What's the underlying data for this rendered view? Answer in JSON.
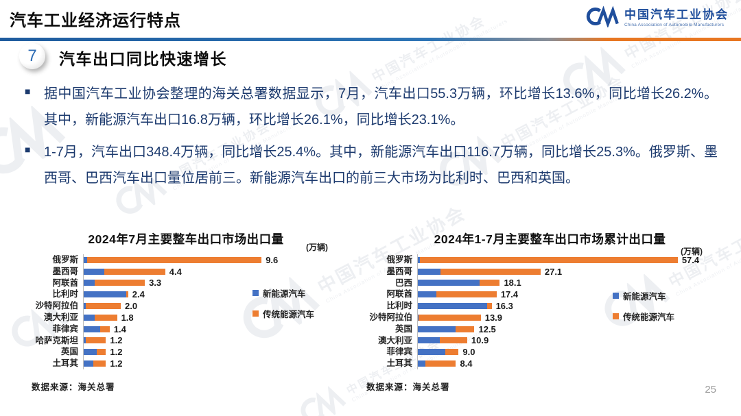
{
  "slide": {
    "title": "汽车工业经济运行特点",
    "section_number": "7",
    "section_title": "汽车出口同比快速增长",
    "page_number": "25"
  },
  "logo": {
    "name_cn": "中国汽车工业协会",
    "name_en": "China Association of Automobile Manufacturers"
  },
  "watermark": {
    "text_cn": "中国汽车工业协会",
    "text_en": "China Association of Automobile Manufacturers"
  },
  "icons": {
    "bullet_square": "■"
  },
  "colors": {
    "nev_blue": "#4472C4",
    "traditional_orange": "#ED7D31",
    "divider_blue": "#2E75B6",
    "divider_orange": "#E87722",
    "body_text": "#1C3A6E",
    "brand_blue": "#1F4E9C"
  },
  "bullets": [
    "据中国汽车工业协会整理的海关总署数据显示，7月，汽车出口55.3万辆，环比增长13.6%，同比增长26.2%。其中，新能源汽车出口16.8万辆，环比增长26.1%，同比增长23.1%。",
    "1-7月，汽车出口348.4万辆，同比增长25.4%。其中，新能源汽车出口116.7万辆，同比增长25.3%。俄罗斯、墨西哥、巴西汽车出口量位居前三。新能源汽车出口的前三大市场为比利时、巴西和英国。"
  ],
  "chart_data": [
    {
      "type": "bar",
      "orientation": "horizontal",
      "stacked": true,
      "title": "2024年7月主要整车出口市场出口量",
      "unit_label": "(万辆)",
      "source": "数据来源：海关总署",
      "legend_position": "right-middle",
      "grid": false,
      "xlim": [
        0,
        10
      ],
      "categories": [
        "俄罗斯",
        "墨西哥",
        "阿联酋",
        "比利时",
        "沙特阿拉伯",
        "澳大利亚",
        "菲律宾",
        "哈萨克斯坦",
        "英国",
        "土耳其"
      ],
      "series": [
        {
          "name": "新能源汽车",
          "color": "#4472C4",
          "values": [
            0.2,
            1.1,
            0.6,
            2.3,
            0.1,
            0.6,
            0.9,
            0.1,
            0.7,
            0.5
          ]
        },
        {
          "name": "传统能源汽车",
          "color": "#ED7D31",
          "values": [
            9.4,
            3.3,
            2.7,
            0.1,
            1.9,
            1.2,
            0.5,
            1.1,
            0.5,
            0.7
          ]
        }
      ],
      "totals": [
        "9.6",
        "4.4",
        "3.3",
        "2.4",
        "2.0",
        "1.8",
        "1.4",
        "1.2",
        "1.2",
        "1.2"
      ]
    },
    {
      "type": "bar",
      "orientation": "horizontal",
      "stacked": true,
      "title": "2024年1-7月主要整车出口市场累计出口量",
      "unit_label": "(万辆)",
      "source": "数据来源：海关总署",
      "legend_position": "right-middle",
      "grid": false,
      "xlim": [
        0,
        60
      ],
      "categories": [
        "俄罗斯",
        "墨西哥",
        "巴西",
        "阿联酋",
        "比利时",
        "沙特阿拉伯",
        "英国",
        "澳大利亚",
        "菲律宾",
        "土耳其"
      ],
      "series": [
        {
          "name": "新能源汽车",
          "color": "#4472C4",
          "values": [
            0.5,
            5.0,
            13.6,
            4.1,
            15.3,
            0.2,
            8.3,
            4.9,
            6.0,
            1.7
          ]
        },
        {
          "name": "传统能源汽车",
          "color": "#ED7D31",
          "values": [
            56.9,
            22.1,
            4.5,
            13.3,
            1.0,
            13.7,
            4.2,
            6.0,
            3.0,
            6.7
          ]
        }
      ],
      "totals": [
        "57.4",
        "27.1",
        "18.1",
        "17.4",
        "16.3",
        "13.9",
        "12.5",
        "10.9",
        "9.0",
        "8.4"
      ]
    }
  ]
}
